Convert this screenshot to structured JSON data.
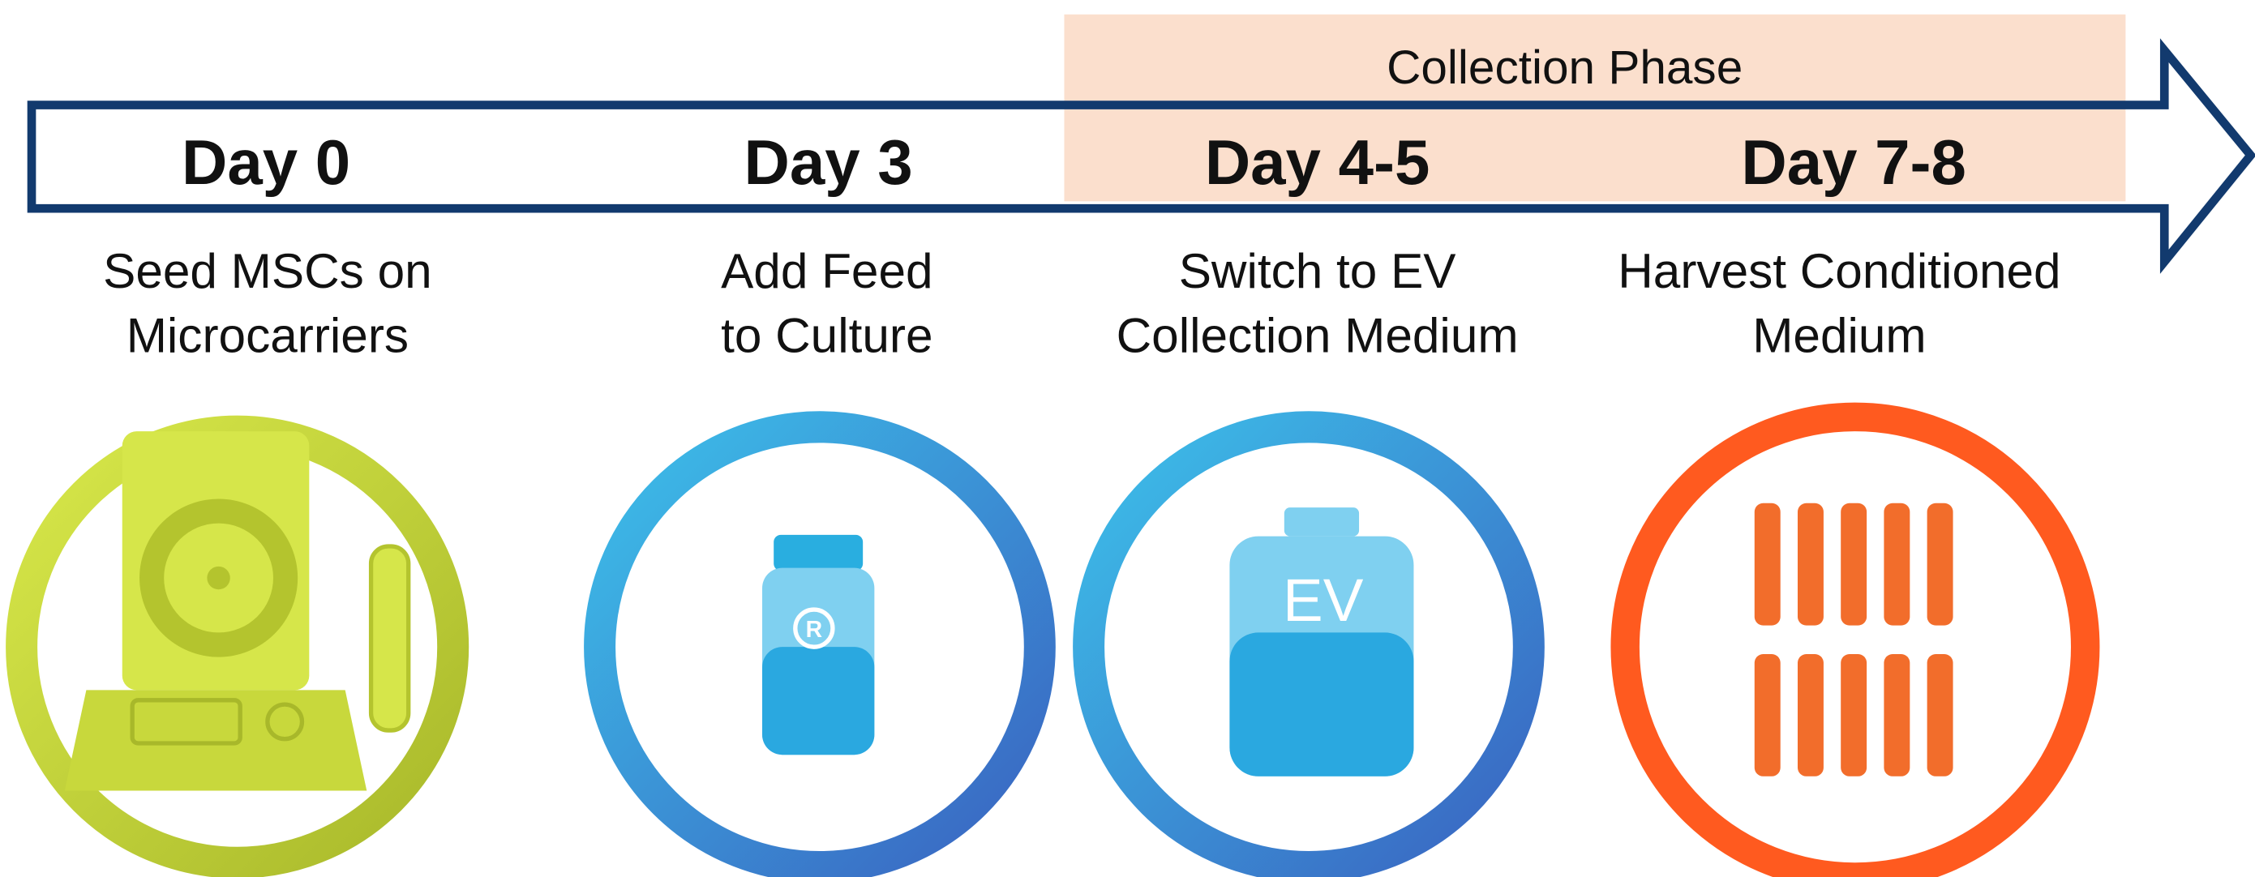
{
  "header": {
    "phase_label": "Collection Phase"
  },
  "steps": [
    {
      "day": "Day 0",
      "description": [
        "Seed MSCs on",
        "Microcarriers"
      ]
    },
    {
      "day": "Day 3",
      "description": [
        "Add Feed",
        "to Culture"
      ],
      "icon_label": "R"
    },
    {
      "day": "Day 4-5",
      "description": [
        "Switch to EV",
        "Collection Medium"
      ],
      "icon_label": "EV"
    },
    {
      "day": "Day 7-8",
      "description": [
        "Harvest Conditioned",
        "Medium"
      ]
    }
  ]
}
